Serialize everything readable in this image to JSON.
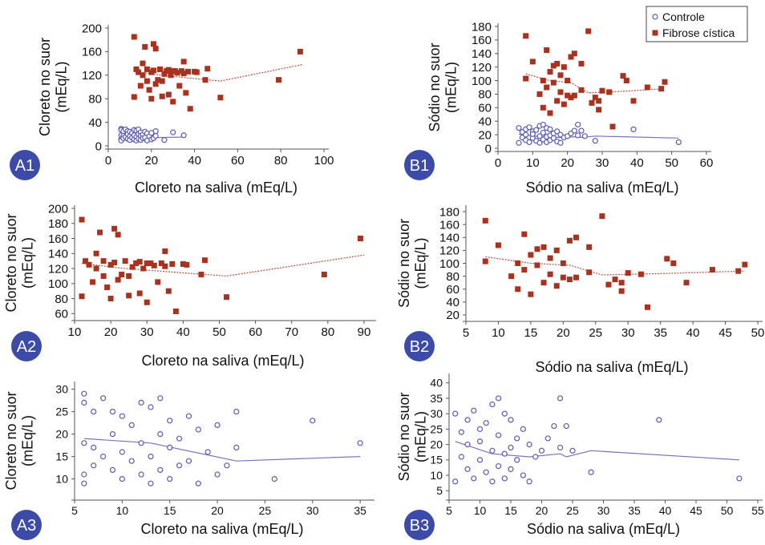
{
  "legend": {
    "entries": [
      {
        "name": "Controle",
        "marker": "open-circle",
        "color": "#5b5bb5"
      },
      {
        "name": "Fibrose cística",
        "marker": "filled-square",
        "color": "#a8321e"
      }
    ]
  },
  "chart_data": [
    {
      "panel": "A1",
      "type": "scatter",
      "xlabel": "Cloreto na saliva (mEq/L)",
      "ylabel": "Cloreto no suor\n(mEq/L)",
      "xlim": [
        0,
        100
      ],
      "ylim": [
        0,
        200
      ],
      "xticks": [
        "0",
        "20",
        "40",
        "60",
        "80",
        "100"
      ],
      "yticks": [
        "0",
        "40",
        "80",
        "120",
        "160",
        "200"
      ],
      "series": [
        {
          "name": "Controle",
          "x": [
            6,
            6,
            6,
            6,
            6,
            7,
            7,
            7,
            8,
            8,
            9,
            9,
            9,
            10,
            10,
            10,
            11,
            11,
            12,
            12,
            12,
            13,
            13,
            13,
            14,
            14,
            14,
            15,
            15,
            15,
            16,
            16,
            17,
            17,
            18,
            18,
            19,
            20,
            20,
            21,
            22,
            22,
            26,
            30,
            35
          ],
          "y": [
            29,
            27,
            18,
            11,
            9,
            25,
            17,
            13,
            28,
            15,
            25,
            12,
            20,
            24,
            16,
            10,
            22,
            14,
            27,
            18,
            11,
            26,
            15,
            9,
            28,
            20,
            12,
            23,
            17,
            10,
            19,
            13,
            24,
            14,
            21,
            9,
            16,
            22,
            11,
            13,
            25,
            17,
            10,
            23,
            18
          ],
          "trend": {
            "x": [
              6,
              13,
              22,
              35
            ],
            "y": [
              19,
              18,
              14,
              15
            ]
          }
        },
        {
          "name": "Fibrose cística",
          "x": [
            12,
            12,
            13,
            14,
            15,
            16,
            16,
            17,
            18,
            18,
            19,
            20,
            20,
            21,
            21,
            22,
            22,
            23,
            24,
            25,
            25,
            26,
            27,
            28,
            28,
            29,
            30,
            30,
            31,
            32,
            33,
            34,
            35,
            35,
            36,
            37,
            38,
            40,
            41,
            45,
            46,
            52,
            79,
            89
          ],
          "y": [
            185,
            83,
            130,
            125,
            102,
            140,
            120,
            168,
            130,
            110,
            95,
            80,
            125,
            173,
            128,
            165,
            105,
            112,
            130,
            110,
            84,
            122,
            127,
            129,
            87,
            120,
            127,
            75,
            127,
            124,
            102,
            127,
            123,
            143,
            90,
            126,
            63,
            126,
            125,
            112,
            131,
            82,
            112,
            160
          ],
          "trend": {
            "x": [
              12,
              22,
              35,
              52,
              90
            ],
            "y": [
              127,
              121,
              116,
              110,
              138
            ]
          }
        }
      ]
    },
    {
      "panel": "B1",
      "type": "scatter",
      "xlabel": "Sódio na saliva (mEq/L)",
      "ylabel": "Sódio no suor\n(mEq/L)",
      "xlim": [
        0,
        60
      ],
      "ylim": [
        0,
        180
      ],
      "xticks": [
        "0",
        "10",
        "20",
        "30",
        "40",
        "50",
        "60"
      ],
      "yticks": [
        "0",
        "20",
        "40",
        "60",
        "80",
        "100",
        "120",
        "140",
        "160",
        "180"
      ],
      "series": [
        {
          "name": "Controle",
          "x": [
            6,
            6,
            7,
            7,
            8,
            8,
            8,
            9,
            9,
            10,
            10,
            10,
            11,
            11,
            12,
            12,
            12,
            13,
            13,
            13,
            14,
            14,
            14,
            15,
            15,
            15,
            16,
            16,
            17,
            17,
            18,
            18,
            19,
            20,
            21,
            22,
            23,
            23,
            24,
            25,
            28,
            39,
            52
          ],
          "y": [
            30,
            8,
            24,
            16,
            28,
            12,
            20,
            31,
            9,
            25,
            15,
            21,
            27,
            11,
            33,
            18,
            8,
            35,
            23,
            13,
            30,
            17,
            9,
            28,
            19,
            12,
            22,
            15,
            25,
            10,
            20,
            8,
            16,
            18,
            22,
            26,
            35,
            19,
            26,
            18,
            11,
            28,
            9
          ],
          "trend": {
            "x": [
              6,
              12,
              18,
              23,
              24,
              28,
              52
            ],
            "y": [
              21,
              17,
              16,
              17,
              16,
              18,
              15
            ]
          }
        },
        {
          "name": "Fibrose cística",
          "x": [
            8,
            8,
            10,
            12,
            13,
            13,
            14,
            14,
            15,
            15,
            16,
            16,
            17,
            17,
            18,
            18,
            19,
            19,
            20,
            20,
            21,
            21,
            22,
            22,
            24,
            24,
            26,
            27,
            28,
            29,
            29,
            30,
            32,
            33,
            36,
            37,
            39,
            43,
            47,
            48
          ],
          "y": [
            166,
            103,
            128,
            80,
            60,
            100,
            145,
            90,
            52,
            113,
            122,
            97,
            70,
            125,
            83,
            108,
            65,
            120,
            78,
            100,
            75,
            135,
            140,
            78,
            86,
            125,
            173,
            67,
            75,
            70,
            57,
            85,
            83,
            32,
            107,
            100,
            70,
            90,
            88,
            98
          ],
          "trend": {
            "x": [
              8,
              15,
              21,
              26,
              35,
              48
            ],
            "y": [
              110,
              100,
              97,
              82,
              84,
              88
            ]
          }
        }
      ]
    },
    {
      "panel": "A2",
      "type": "scatter",
      "xlabel": "Cloreto na saliva (mEq/L)",
      "ylabel": "Cloreto no suor\n(mEq/L)",
      "xlim": [
        10,
        92
      ],
      "ylim": [
        55,
        200
      ],
      "xticks": [
        "10",
        "20",
        "30",
        "40",
        "50",
        "60",
        "70",
        "80",
        "90"
      ],
      "yticks": [
        "60",
        "80",
        "100",
        "120",
        "140",
        "160",
        "180",
        "200"
      ],
      "series": [
        {
          "name": "Fibrose cística",
          "x": [
            12,
            12,
            13,
            14,
            15,
            16,
            16,
            17,
            18,
            18,
            19,
            20,
            20,
            21,
            21,
            22,
            22,
            23,
            24,
            25,
            25,
            26,
            27,
            28,
            28,
            29,
            30,
            30,
            31,
            32,
            33,
            34,
            35,
            35,
            36,
            37,
            38,
            40,
            41,
            45,
            46,
            52,
            79,
            89
          ],
          "y": [
            185,
            83,
            130,
            125,
            102,
            140,
            120,
            168,
            130,
            110,
            95,
            80,
            125,
            173,
            128,
            165,
            105,
            112,
            130,
            110,
            84,
            122,
            127,
            129,
            87,
            120,
            127,
            75,
            127,
            124,
            102,
            127,
            123,
            143,
            90,
            126,
            63,
            126,
            125,
            112,
            131,
            82,
            112,
            160
          ],
          "trend": {
            "x": [
              12,
              22,
              35,
              52,
              90
            ],
            "y": [
              127,
              121,
              116,
              110,
              138
            ]
          }
        }
      ]
    },
    {
      "panel": "B2",
      "type": "scatter",
      "xlabel": "Sódio na saliva (mEq/L)",
      "ylabel": "Sódio no suor\n(mEq/L)",
      "xlim": [
        5,
        50
      ],
      "ylim": [
        15,
        185
      ],
      "xticks": [
        "5",
        "10",
        "15",
        "20",
        "25",
        "30",
        "35",
        "40",
        "45",
        "50"
      ],
      "yticks": [
        "20",
        "40",
        "60",
        "80",
        "100",
        "120",
        "140",
        "160",
        "180"
      ],
      "series": [
        {
          "name": "Fibrose cística",
          "x": [
            8,
            8,
            10,
            12,
            13,
            13,
            14,
            14,
            15,
            15,
            16,
            16,
            17,
            17,
            18,
            18,
            19,
            19,
            20,
            20,
            21,
            21,
            22,
            22,
            24,
            24,
            26,
            27,
            28,
            29,
            29,
            30,
            32,
            33,
            36,
            37,
            39,
            43,
            47,
            48
          ],
          "y": [
            166,
            103,
            128,
            80,
            60,
            100,
            145,
            90,
            52,
            113,
            122,
            97,
            70,
            125,
            83,
            108,
            65,
            120,
            78,
            100,
            75,
            135,
            140,
            78,
            86,
            125,
            173,
            67,
            75,
            70,
            57,
            85,
            83,
            32,
            107,
            100,
            70,
            90,
            88,
            98
          ],
          "trend": {
            "x": [
              8,
              15,
              21,
              26,
              35,
              48
            ],
            "y": [
              110,
              100,
              97,
              82,
              84,
              88
            ]
          }
        }
      ]
    },
    {
      "panel": "A3",
      "type": "scatter",
      "xlabel": "Cloreto na saliva (mEq/L)",
      "ylabel": "Cloreto no suor\n(mEq/L)",
      "xlim": [
        5,
        36
      ],
      "ylim": [
        6,
        31
      ],
      "xticks": [
        "5",
        "10",
        "15",
        "20",
        "25",
        "30",
        "35"
      ],
      "yticks": [
        "10",
        "15",
        "20",
        "25",
        "30"
      ],
      "series": [
        {
          "name": "Controle",
          "x": [
            6,
            6,
            6,
            6,
            6,
            7,
            7,
            7,
            8,
            8,
            9,
            9,
            9,
            10,
            10,
            10,
            11,
            11,
            12,
            12,
            12,
            13,
            13,
            13,
            14,
            14,
            14,
            15,
            15,
            15,
            16,
            16,
            17,
            17,
            18,
            18,
            19,
            20,
            20,
            21,
            22,
            22,
            26,
            30,
            35
          ],
          "y": [
            29,
            27,
            18,
            11,
            9,
            25,
            17,
            13,
            28,
            15,
            25,
            12,
            20,
            24,
            16,
            10,
            22,
            14,
            27,
            18,
            11,
            26,
            15,
            9,
            28,
            20,
            12,
            23,
            17,
            10,
            19,
            13,
            24,
            14,
            21,
            9,
            16,
            22,
            11,
            13,
            25,
            17,
            10,
            23,
            18
          ],
          "trend": {
            "x": [
              6,
              13,
              22,
              35
            ],
            "y": [
              19,
              18,
              14,
              15
            ]
          }
        }
      ]
    },
    {
      "panel": "B3",
      "type": "scatter",
      "xlabel": "Sódio na saliva (mEq/L)",
      "ylabel": "Sódio no suor\n(mEq/L)",
      "xlim": [
        5,
        55
      ],
      "ylim": [
        3,
        42
      ],
      "xticks": [
        "5",
        "10",
        "15",
        "20",
        "25",
        "30",
        "35",
        "40",
        "45",
        "50",
        "55"
      ],
      "yticks": [
        "5",
        "10",
        "15",
        "20",
        "25",
        "30",
        "35",
        "40"
      ],
      "series": [
        {
          "name": "Controle",
          "x": [
            6,
            6,
            7,
            7,
            8,
            8,
            8,
            9,
            9,
            10,
            10,
            10,
            11,
            11,
            12,
            12,
            12,
            13,
            13,
            13,
            14,
            14,
            14,
            15,
            15,
            15,
            16,
            16,
            17,
            17,
            18,
            18,
            19,
            20,
            21,
            22,
            23,
            23,
            24,
            25,
            28,
            39,
            52
          ],
          "y": [
            30,
            8,
            24,
            16,
            28,
            12,
            20,
            31,
            9,
            25,
            15,
            21,
            27,
            11,
            33,
            18,
            8,
            35,
            23,
            13,
            30,
            17,
            9,
            28,
            19,
            12,
            22,
            15,
            25,
            10,
            20,
            8,
            16,
            18,
            22,
            26,
            35,
            19,
            26,
            18,
            11,
            28,
            9
          ],
          "trend": {
            "x": [
              6,
              12,
              18,
              23,
              24,
              28,
              52
            ],
            "y": [
              21,
              17,
              16,
              17,
              16,
              18,
              15
            ]
          }
        }
      ]
    }
  ]
}
